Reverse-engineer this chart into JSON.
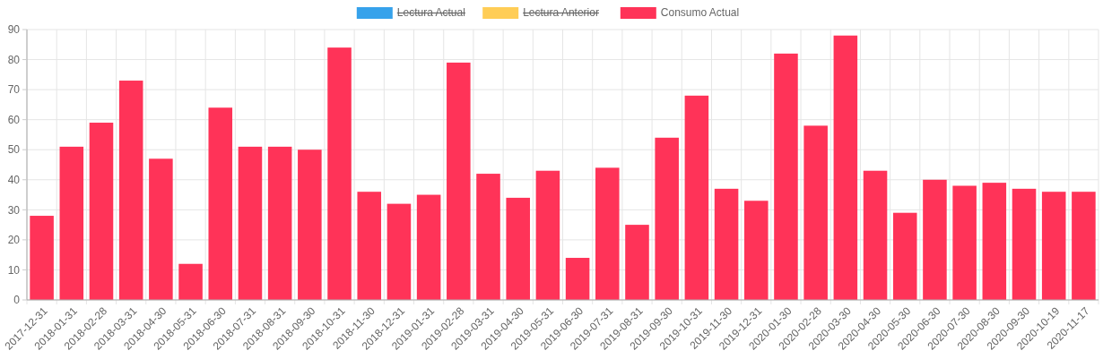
{
  "chart_data": {
    "type": "bar",
    "categories": [
      "2017-12-31",
      "2018-01-31",
      "2018-02-28",
      "2018-03-31",
      "2018-04-30",
      "2018-05-31",
      "2018-06-30",
      "2018-07-31",
      "2018-08-31",
      "2018-09-30",
      "2018-10-31",
      "2018-11-30",
      "2018-12-31",
      "2019-01-31",
      "2019-02-28",
      "2019-03-31",
      "2019-04-30",
      "2019-05-31",
      "2019-06-30",
      "2019-07-31",
      "2019-08-31",
      "2019-09-30",
      "2019-10-31",
      "2019-11-30",
      "2019-12-31",
      "2020-01-30",
      "2020-02-28",
      "2020-03-30",
      "2020-04-30",
      "2020-05-30",
      "2020-06-30",
      "2020-07-30",
      "2020-08-30",
      "2020-09-30",
      "2020-10-19",
      "2020-11-17"
    ],
    "series": [
      {
        "name": "Lectura Actual",
        "color": "#36a2eb",
        "values": [
          null,
          null,
          null,
          null,
          null,
          null,
          null,
          null,
          null,
          null,
          null,
          null,
          null,
          null,
          null,
          null,
          null,
          null,
          null,
          null,
          null,
          null,
          null,
          null,
          null,
          null,
          null,
          null,
          null,
          null,
          null,
          null,
          null,
          null,
          null,
          null
        ]
      },
      {
        "name": "Lectura Anterior",
        "color": "#ffcd56",
        "values": [
          null,
          null,
          null,
          null,
          null,
          null,
          null,
          null,
          null,
          null,
          null,
          null,
          null,
          null,
          null,
          null,
          null,
          null,
          null,
          null,
          null,
          null,
          null,
          null,
          null,
          null,
          null,
          null,
          null,
          null,
          null,
          null,
          null,
          null,
          null,
          null
        ]
      },
      {
        "name": "Consumo Actual",
        "color": "#ff3358",
        "values": [
          28,
          51,
          59,
          73,
          47,
          12,
          64,
          51,
          51,
          50,
          84,
          36,
          32,
          35,
          79,
          42,
          34,
          43,
          14,
          44,
          25,
          54,
          68,
          37,
          33,
          82,
          58,
          88,
          43,
          29,
          40,
          38,
          39,
          37,
          36,
          36
        ]
      }
    ],
    "ylim": [
      0,
      90
    ],
    "yticks": [
      0,
      10,
      20,
      30,
      40,
      50,
      60,
      70,
      80,
      90
    ],
    "grid": true,
    "legend": "top"
  }
}
